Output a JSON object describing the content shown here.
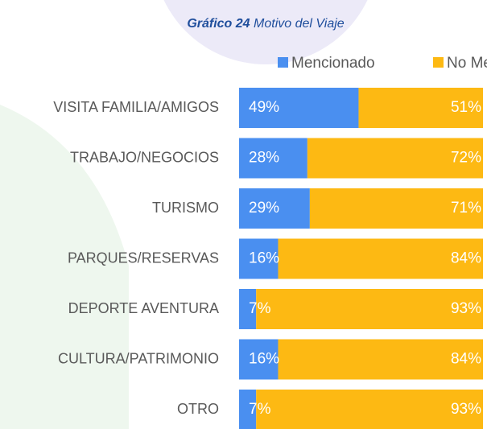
{
  "chart_data": {
    "type": "stacked-bar-horizontal",
    "title": "Gráfico 24",
    "subtitle": "Motivo del Viaje",
    "categories": [
      "VISITA FAMILIA/AMIGOS",
      "TRABAJO/NEGOCIOS",
      "TURISMO",
      "PARQUES/RESERVAS",
      "DEPORTE AVENTURA",
      "CULTURA/PATRIMONIO",
      "OTRO"
    ],
    "series": [
      {
        "name": "Mencionado",
        "color": "#4a8ff0",
        "values": [
          49,
          28,
          29,
          16,
          7,
          16,
          7
        ],
        "value_labels": [
          "49%",
          "28%",
          "29%",
          "16%",
          "7%",
          "16%",
          "7%"
        ]
      },
      {
        "name": "No Mencionado",
        "color": "#fdb913",
        "values": [
          51,
          72,
          71,
          84,
          93,
          84,
          93
        ],
        "value_labels": [
          "51%",
          "72%",
          "71%",
          "84%",
          "93%",
          "84%",
          "93%"
        ]
      }
    ],
    "xlim": [
      0,
      100
    ],
    "legend": "top"
  }
}
